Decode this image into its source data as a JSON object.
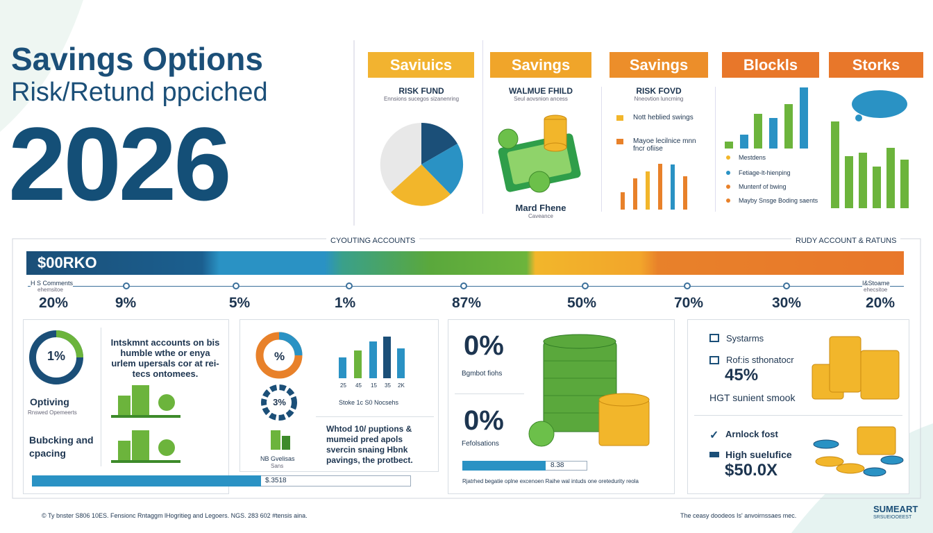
{
  "header": {
    "title_line1": "Savings Options",
    "title_line2": "Risk/Retund ppciched",
    "year": "2026"
  },
  "tabs": [
    "Saviuics",
    "Savings",
    "Savings",
    "Blockls",
    "Storks"
  ],
  "panels": [
    {
      "title": "RISK FUND",
      "subtitle": "Ennsions sucegos sizanenring"
    },
    {
      "title": "WALMUE FHILD",
      "subtitle": "Seul aovsnion ancess",
      "caption": "Mard Fhene",
      "caption_sub": "Caveance"
    },
    {
      "title": "RISK FOVD",
      "subtitle": "Nneovtion luncrning",
      "items": [
        "Nott heblied swings",
        "Mayoe lecilnice mnn fncr ofiise"
      ]
    },
    {
      "items": [
        "Mestdens",
        "Fetiage-lt-hienping",
        "Muntenf of bwing",
        "Mayby Snsge Boding saents"
      ]
    }
  ],
  "timeline": {
    "left_label": "CYOUTING ACCOUNTS",
    "right_label": "RUDY ACCOUNT & RATUNS",
    "bar_label": "$00RKO",
    "start_note": "H S Comments",
    "start_sub": "ehemsitoe",
    "end_note": "I&Stoame",
    "end_sub": "ehecsitoe",
    "percents": [
      "20%",
      "9%",
      "5%",
      "1%",
      "87%",
      "50%",
      "70%",
      "30%",
      "20%"
    ]
  },
  "cards": [
    {
      "ring": "1%",
      "text": "Intskmnt accounts on bis humble wthe or enya urlem upersals cor at rei-tecs ontomees.",
      "label1": "Optiving",
      "label1_sub": "Rnswed Opemeerts",
      "label2": "Bubcking and cpacing",
      "bar": "$.3518"
    },
    {
      "ring1": "%",
      "ring2": "3%",
      "axis": [
        "25",
        "45",
        "15",
        "35",
        "2K"
      ],
      "chart_caption": "Stoke 1c S0 Nocsehs",
      "small_label": "NB Gvelisas",
      "small_sub": "Sans",
      "text": "Whtod 10/ puptions & mumeid pred apols svercin snaing Hbnk pavings, the protbect."
    },
    {
      "v1": "0%",
      "v1_label": "Bgmbot fiohs",
      "v2": "0%",
      "v2_label": "Fefolsations",
      "bar": "8.38",
      "note": "Rjatrhed begatie oplne excenoen Raihe wal intuds one oretedurity reola"
    },
    {
      "row1": "Systarms",
      "row2": "Rof:is sthonatocr",
      "row2_value": "45%",
      "row3": "HGT sunient smook",
      "row4": "Arnlock fost",
      "row5": "High suelufice",
      "row5_value": "$50.0X"
    }
  ],
  "footer": {
    "left": "© Ty bnster  S806 10ES.  Fensionc  Rntaggm lHogritieg and Legoers.  NGS.  283 602 #tensis aina.",
    "right": "The ceasy  doodeos  Is' anvoirnssaes mec.",
    "brand": "SUMEART",
    "brand_sub": "SRSUEIOOEEST"
  }
}
